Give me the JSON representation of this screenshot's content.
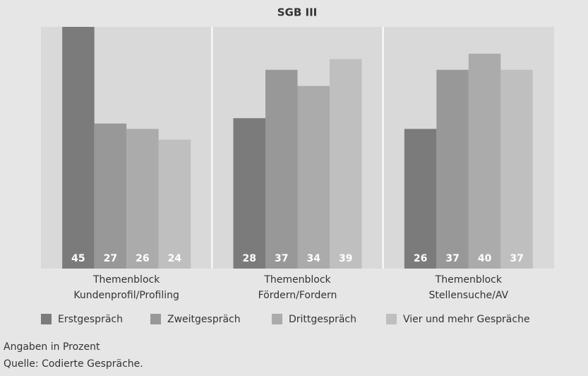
{
  "chart_data": {
    "type": "bar",
    "title": "SGB III",
    "categories": [
      [
        "Themenblock",
        "Kundenprofil/Profiling"
      ],
      [
        "Themenblock",
        "Fördern/Fordern"
      ],
      [
        "Themenblock",
        "Stellensuche/AV"
      ]
    ],
    "series": [
      {
        "name": "Erstgespräch",
        "color": "#7b7b7b",
        "values": [
          45,
          28,
          26
        ]
      },
      {
        "name": "Zweitgespräch",
        "color": "#989898",
        "values": [
          27,
          37,
          37
        ]
      },
      {
        "name": "Drittgespräch",
        "color": "#ababab",
        "values": [
          26,
          34,
          40
        ]
      },
      {
        "name": "Vier und mehr Gespräche",
        "color": "#bfbfbf",
        "values": [
          24,
          39,
          37
        ]
      }
    ],
    "ylim": [
      0,
      45
    ],
    "notes": [
      "Angaben in Prozent",
      "Quelle: Codierte Gespräche."
    ]
  }
}
